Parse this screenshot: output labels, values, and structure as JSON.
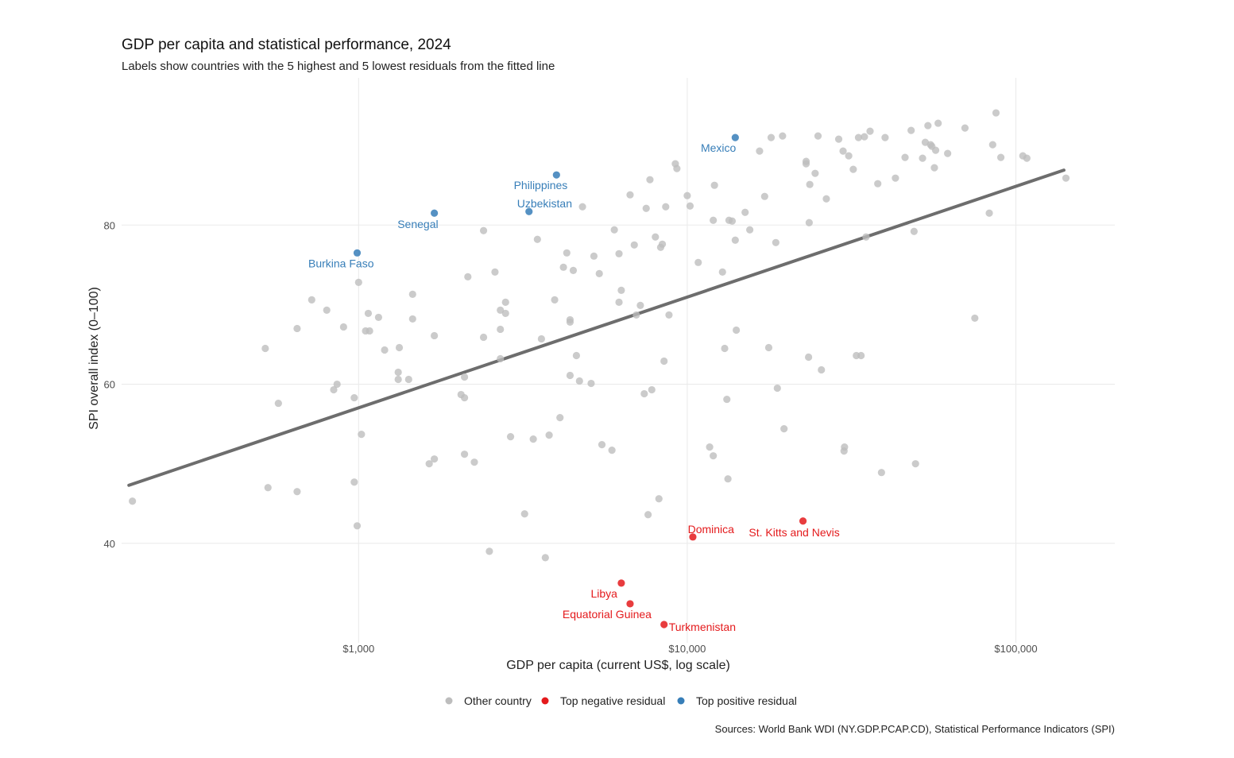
{
  "chart_data": {
    "type": "scatter",
    "title": "GDP per capita and statistical performance, 2024",
    "subtitle": "Labels show countries with the 5 highest and 5 lowest residuals from the fitted line",
    "xlabel": "GDP per capita (current US$, log scale)",
    "ylabel": "SPI overall index (0–100)",
    "caption": "Sources: World Bank WDI (NY.GDP.PCAP.CD), Statistical Performance Indicators (SPI)",
    "x_scale": "log10",
    "xlim": [
      190,
      200000
    ],
    "ylim": [
      27.5,
      98.5
    ],
    "x_ticks": [
      {
        "value": 1000,
        "label": "$1,000"
      },
      {
        "value": 10000,
        "label": "$10,000"
      },
      {
        "value": 100000,
        "label": "$100,000"
      }
    ],
    "y_ticks": [
      {
        "value": 40,
        "label": "40"
      },
      {
        "value": 60,
        "label": "60"
      },
      {
        "value": 80,
        "label": "80"
      }
    ],
    "colors": {
      "other": "#bdbdbd",
      "negative": "#e41a1c",
      "positive": "#377eb8",
      "fit": "#666666",
      "grid": "#ebebeb"
    },
    "legend": [
      {
        "key": "other",
        "label": "Other country"
      },
      {
        "key": "negative",
        "label": "Top negative residual"
      },
      {
        "key": "positive",
        "label": "Top positive residual"
      }
    ],
    "fit_line": {
      "x": [
        200,
        140000
      ],
      "y": [
        47.3,
        86.9
      ]
    },
    "labeled_points": [
      {
        "label": "Mexico",
        "x": 14000,
        "y": 91.0,
        "group": "positive",
        "anchor": "end",
        "dx": 1,
        "dy": 18
      },
      {
        "label": "Philippines",
        "x": 4000,
        "y": 86.3,
        "group": "positive",
        "anchor": "end",
        "dx": 14,
        "dy": 18
      },
      {
        "label": "Uzbekistan",
        "x": 3300,
        "y": 81.7,
        "group": "positive",
        "anchor": "start",
        "dx": -15,
        "dy": -5
      },
      {
        "label": "Senegal",
        "x": 1700,
        "y": 81.5,
        "group": "positive",
        "anchor": "end",
        "dx": 5,
        "dy": 19
      },
      {
        "label": "Burkina Faso",
        "x": 990,
        "y": 76.5,
        "group": "positive",
        "anchor": "end",
        "dx": 21,
        "dy": 18
      },
      {
        "label": "St. Kitts and Nevis",
        "x": 22500,
        "y": 42.8,
        "group": "negative",
        "anchor": "middle",
        "dx": -11,
        "dy": 19
      },
      {
        "label": "Dominica",
        "x": 10400,
        "y": 40.8,
        "group": "negative",
        "anchor": "end",
        "dx": 52,
        "dy": -5
      },
      {
        "label": "Libya",
        "x": 6300,
        "y": 35.0,
        "group": "negative",
        "anchor": "end",
        "dx": -5,
        "dy": 18
      },
      {
        "label": "Equatorial Guinea",
        "x": 6700,
        "y": 32.4,
        "group": "negative",
        "anchor": "end",
        "dx": 27,
        "dy": 18
      },
      {
        "label": "Turkmenistan",
        "x": 8500,
        "y": 29.8,
        "group": "negative",
        "anchor": "start",
        "dx": 6,
        "dy": 8
      }
    ],
    "other_points": [
      [
        205,
        45.3
      ],
      [
        520,
        64.5
      ],
      [
        530,
        47.0
      ],
      [
        570,
        57.6
      ],
      [
        650,
        67.0
      ],
      [
        650,
        46.5
      ],
      [
        720,
        70.6
      ],
      [
        800,
        69.3
      ],
      [
        840,
        59.3
      ],
      [
        860,
        60.0
      ],
      [
        900,
        67.2
      ],
      [
        970,
        58.3
      ],
      [
        970,
        47.7
      ],
      [
        990,
        42.2
      ],
      [
        1000,
        72.8
      ],
      [
        1020,
        53.7
      ],
      [
        1050,
        66.7
      ],
      [
        1070,
        68.9
      ],
      [
        1080,
        66.7
      ],
      [
        1150,
        68.4
      ],
      [
        1200,
        64.3
      ],
      [
        1320,
        61.5
      ],
      [
        1320,
        60.6
      ],
      [
        1330,
        64.6
      ],
      [
        1420,
        60.6
      ],
      [
        1460,
        71.3
      ],
      [
        1460,
        68.2
      ],
      [
        1640,
        50.0
      ],
      [
        1700,
        66.1
      ],
      [
        1700,
        50.6
      ],
      [
        2050,
        58.7
      ],
      [
        2100,
        58.3
      ],
      [
        2100,
        60.9
      ],
      [
        2100,
        51.2
      ],
      [
        2150,
        73.5
      ],
      [
        2250,
        50.2
      ],
      [
        2400,
        79.3
      ],
      [
        2400,
        65.9
      ],
      [
        2500,
        39.0
      ],
      [
        2600,
        74.1
      ],
      [
        2700,
        69.3
      ],
      [
        2700,
        63.2
      ],
      [
        2700,
        66.9
      ],
      [
        2800,
        70.3
      ],
      [
        2800,
        68.9
      ],
      [
        2900,
        53.4
      ],
      [
        3200,
        43.7
      ],
      [
        3400,
        53.1
      ],
      [
        3500,
        78.2
      ],
      [
        3600,
        65.7
      ],
      [
        3700,
        38.2
      ],
      [
        3800,
        53.6
      ],
      [
        3950,
        70.6
      ],
      [
        4100,
        55.8
      ],
      [
        4200,
        74.7
      ],
      [
        4300,
        76.5
      ],
      [
        4400,
        68.1
      ],
      [
        4400,
        67.8
      ],
      [
        4400,
        61.1
      ],
      [
        4500,
        74.3
      ],
      [
        4600,
        63.6
      ],
      [
        4700,
        60.4
      ],
      [
        4800,
        82.3
      ],
      [
        5100,
        60.1
      ],
      [
        5200,
        76.1
      ],
      [
        5400,
        73.9
      ],
      [
        5500,
        52.4
      ],
      [
        5900,
        51.7
      ],
      [
        6000,
        79.4
      ],
      [
        6200,
        76.4
      ],
      [
        6200,
        70.3
      ],
      [
        6300,
        71.8
      ],
      [
        6700,
        83.8
      ],
      [
        6900,
        77.5
      ],
      [
        7000,
        68.7
      ],
      [
        7200,
        69.9
      ],
      [
        7400,
        58.8
      ],
      [
        7500,
        82.1
      ],
      [
        7600,
        43.6
      ],
      [
        7700,
        85.7
      ],
      [
        7800,
        59.3
      ],
      [
        8000,
        78.5
      ],
      [
        8200,
        45.6
      ],
      [
        8300,
        77.2
      ],
      [
        8400,
        77.6
      ],
      [
        8500,
        62.9
      ],
      [
        8600,
        82.3
      ],
      [
        8800,
        68.7
      ],
      [
        9200,
        87.7
      ],
      [
        9300,
        87.1
      ],
      [
        10000,
        83.7
      ],
      [
        10200,
        82.4
      ],
      [
        10800,
        75.3
      ],
      [
        11700,
        52.1
      ],
      [
        12000,
        51.0
      ],
      [
        12000,
        80.6
      ],
      [
        12100,
        85.0
      ],
      [
        12800,
        74.1
      ],
      [
        13000,
        64.5
      ],
      [
        13200,
        58.1
      ],
      [
        13300,
        48.1
      ],
      [
        13400,
        80.6
      ],
      [
        13700,
        80.5
      ],
      [
        14000,
        78.1
      ],
      [
        14100,
        66.8
      ],
      [
        15000,
        81.6
      ],
      [
        15500,
        79.4
      ],
      [
        16600,
        89.3
      ],
      [
        17200,
        83.6
      ],
      [
        17700,
        64.6
      ],
      [
        18000,
        91.0
      ],
      [
        18600,
        77.8
      ],
      [
        18800,
        59.5
      ],
      [
        19500,
        91.2
      ],
      [
        19700,
        54.4
      ],
      [
        23000,
        88.0
      ],
      [
        23000,
        87.7
      ],
      [
        23400,
        63.4
      ],
      [
        23500,
        80.3
      ],
      [
        23600,
        85.1
      ],
      [
        24500,
        86.5
      ],
      [
        25000,
        91.2
      ],
      [
        25600,
        61.8
      ],
      [
        26500,
        83.3
      ],
      [
        28900,
        90.8
      ],
      [
        29800,
        89.3
      ],
      [
        30000,
        51.6
      ],
      [
        30100,
        52.1
      ],
      [
        31000,
        88.7
      ],
      [
        32000,
        87.0
      ],
      [
        32700,
        63.6
      ],
      [
        33200,
        91.0
      ],
      [
        33800,
        63.6
      ],
      [
        34600,
        91.1
      ],
      [
        35000,
        78.5
      ],
      [
        36000,
        91.8
      ],
      [
        38000,
        85.2
      ],
      [
        39000,
        48.9
      ],
      [
        40000,
        91.0
      ],
      [
        43000,
        85.9
      ],
      [
        46000,
        88.5
      ],
      [
        48000,
        91.9
      ],
      [
        49000,
        79.2
      ],
      [
        49500,
        50.0
      ],
      [
        52000,
        88.4
      ],
      [
        53000,
        90.4
      ],
      [
        54000,
        92.5
      ],
      [
        55000,
        90.1
      ],
      [
        55500,
        89.9
      ],
      [
        56500,
        87.2
      ],
      [
        57000,
        89.4
      ],
      [
        58000,
        92.8
      ],
      [
        62000,
        89.0
      ],
      [
        70000,
        92.2
      ],
      [
        75000,
        68.3
      ],
      [
        83000,
        81.5
      ],
      [
        85000,
        90.1
      ],
      [
        87000,
        94.1
      ],
      [
        90000,
        88.5
      ],
      [
        105000,
        88.7
      ],
      [
        108000,
        88.4
      ],
      [
        142000,
        85.9
      ]
    ]
  }
}
